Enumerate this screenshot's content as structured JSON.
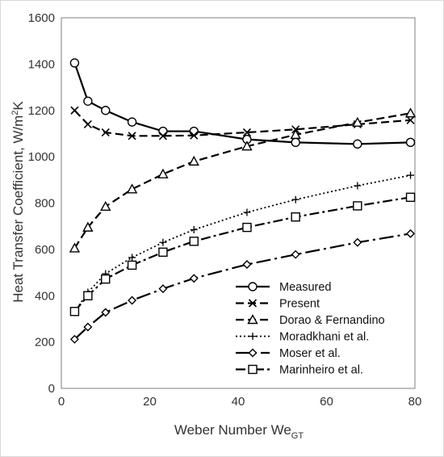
{
  "chart_data": {
    "type": "line",
    "xlabel": "Weber Number We",
    "xlabel_sub": "GT",
    "ylabel": "Heat Transfer Coefficient, W/m",
    "ylabel_sup": "2",
    "ylabel_tail": "K",
    "xlim": [
      0,
      80
    ],
    "ylim": [
      0,
      1600
    ],
    "xticks": [
      0,
      20,
      40,
      60,
      80
    ],
    "yticks": [
      0,
      200,
      400,
      600,
      800,
      1000,
      1200,
      1400,
      1600
    ],
    "grid": false,
    "legend_position": "bottom-right",
    "series": [
      {
        "name": "Measured",
        "marker": "circle",
        "dash": "solid",
        "x": [
          3,
          6,
          10,
          16,
          23,
          30,
          42,
          53,
          67,
          79
        ],
        "y": [
          1405,
          1240,
          1200,
          1150,
          1110,
          1110,
          1075,
          1062,
          1055,
          1062
        ]
      },
      {
        "name": "Present",
        "marker": "x",
        "dash": "dash",
        "x": [
          3,
          6,
          10,
          16,
          23,
          30,
          42,
          53,
          67,
          79
        ],
        "y": [
          1200,
          1140,
          1105,
          1090,
          1090,
          1092,
          1105,
          1118,
          1140,
          1158
        ]
      },
      {
        "name": "Dorao & Fernandino",
        "marker": "triangle",
        "dash": "dash",
        "x": [
          3,
          6,
          10,
          16,
          23,
          30,
          42,
          53,
          67,
          79
        ],
        "y": [
          605,
          695,
          785,
          860,
          925,
          980,
          1045,
          1095,
          1148,
          1188
        ]
      },
      {
        "name": "Moradkhani et al.",
        "marker": "plus",
        "dash": "dot",
        "x": [
          3,
          6,
          10,
          16,
          23,
          30,
          42,
          53,
          67,
          79
        ],
        "y": [
          330,
          415,
          495,
          565,
          630,
          685,
          760,
          815,
          875,
          920
        ]
      },
      {
        "name": "Moser et al.",
        "marker": "diamond",
        "dash": "longdashdot",
        "x": [
          3,
          6,
          10,
          16,
          23,
          30,
          42,
          53,
          67,
          79
        ],
        "y": [
          212,
          265,
          328,
          380,
          430,
          475,
          535,
          578,
          630,
          668
        ]
      },
      {
        "name": "Marinheiro et al.",
        "marker": "square",
        "dash": "dashdot",
        "x": [
          3,
          6,
          10,
          16,
          23,
          30,
          42,
          53,
          67,
          79
        ],
        "y": [
          332,
          400,
          472,
          532,
          588,
          635,
          695,
          740,
          788,
          825
        ]
      }
    ]
  }
}
